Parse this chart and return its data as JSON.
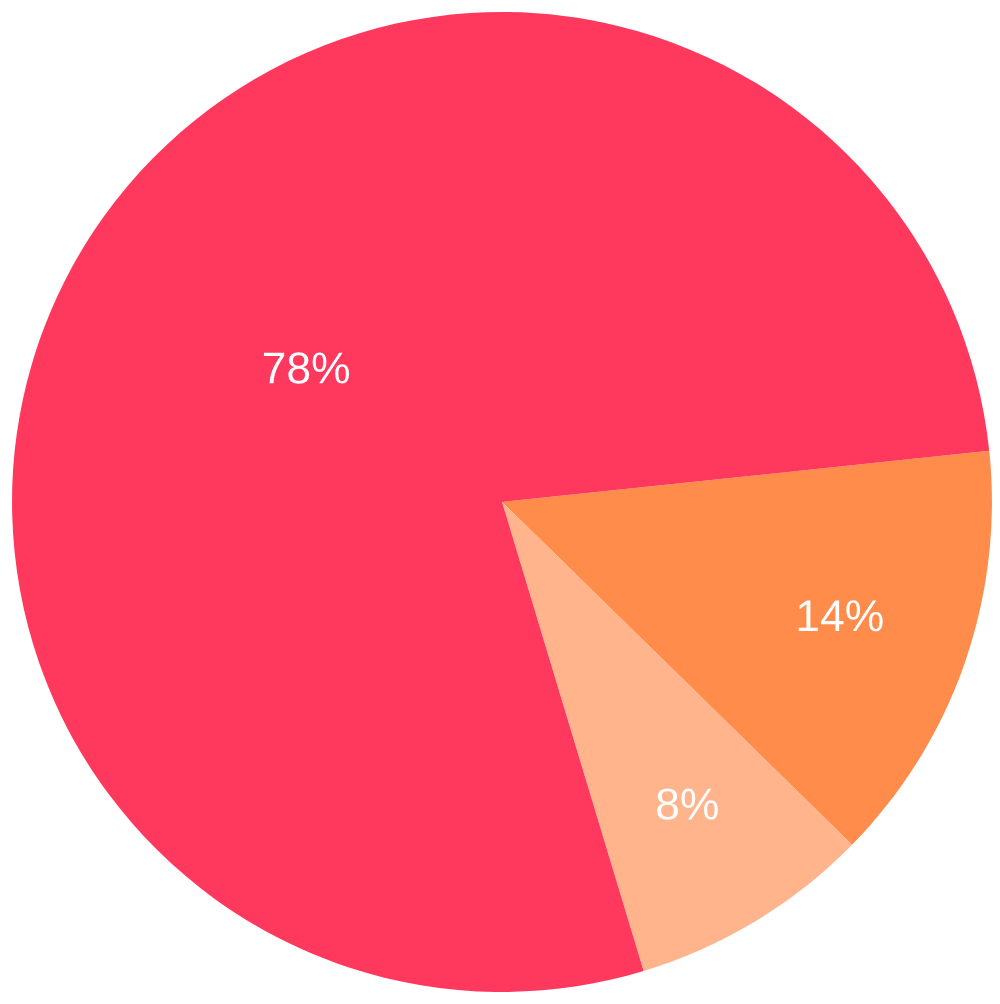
{
  "chart_data": {
    "type": "pie",
    "categories": [
      null,
      null,
      null
    ],
    "values": [
      14,
      8,
      78
    ],
    "colors": [
      "#ff8c4b",
      "#ffb48c",
      "#ff385d"
    ],
    "value_labels": [
      "14%",
      "8%",
      "78%"
    ]
  }
}
